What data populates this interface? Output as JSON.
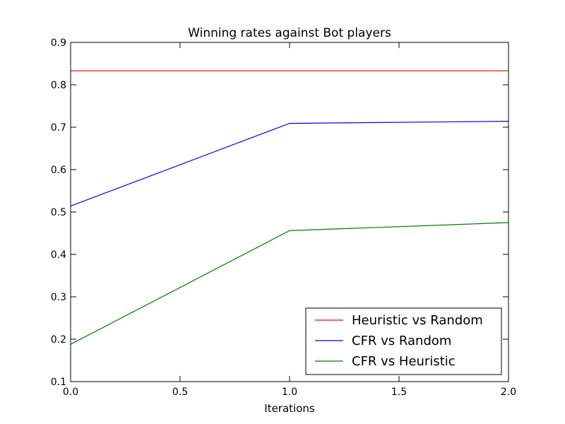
{
  "chart_data": {
    "type": "line",
    "title": "Winning rates against Bot players",
    "xlabel": "Iterations",
    "ylabel": "",
    "xlim": [
      0.0,
      2.0
    ],
    "ylim": [
      0.1,
      0.9
    ],
    "xticks": [
      "0.0",
      "0.5",
      "1.0",
      "1.5",
      "2.0"
    ],
    "yticks": [
      "0.1",
      "0.2",
      "0.3",
      "0.4",
      "0.5",
      "0.6",
      "0.7",
      "0.8",
      "0.9"
    ],
    "x": [
      0,
      1,
      2
    ],
    "series": [
      {
        "name": "Heuristic vs Random",
        "color": "#ff0000",
        "values": [
          0.833,
          0.833,
          0.833
        ]
      },
      {
        "name": "CFR vs Random",
        "color": "#0000ff",
        "values": [
          0.514,
          0.709,
          0.714
        ]
      },
      {
        "name": "CFR vs Heuristic",
        "color": "#008000",
        "values": [
          0.188,
          0.456,
          0.475
        ]
      }
    ],
    "legend_position": "lower-right",
    "grid": false
  }
}
